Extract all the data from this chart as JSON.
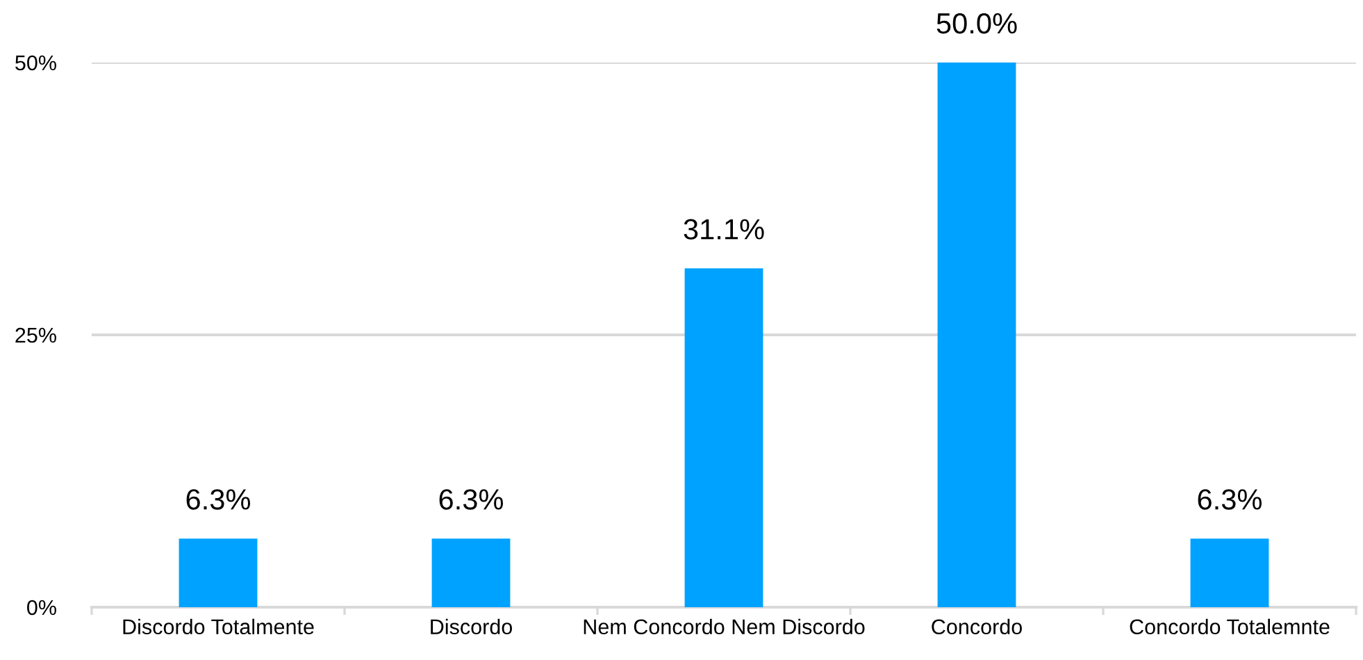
{
  "chart_data": {
    "type": "bar",
    "categories": [
      "Discordo Totalmente",
      "Discordo",
      "Nem Concordo Nem Discordo",
      "Concordo",
      "Concordo Totalemnte"
    ],
    "values": [
      6.3,
      6.3,
      31.1,
      50.0,
      6.3
    ],
    "value_labels": [
      "6.3%",
      "6.3%",
      "31.1%",
      "50.0%",
      "6.3%"
    ],
    "color": "#00a2ff",
    "ylim": [
      0,
      50
    ],
    "yticks": [
      {
        "value": 0,
        "label": "0%"
      },
      {
        "value": 25,
        "label": "25%"
      },
      {
        "value": 50,
        "label": "50%"
      }
    ],
    "grid": "y"
  }
}
